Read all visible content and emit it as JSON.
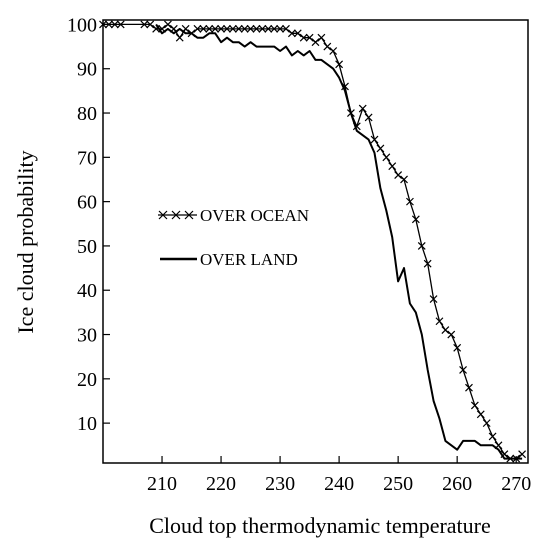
{
  "chart_data": {
    "type": "line",
    "xlabel": "Cloud top thermodynamic temperature",
    "ylabel": "Ice cloud probability",
    "xlim": [
      200,
      272
    ],
    "ylim": [
      1,
      101
    ],
    "xticks": [
      210,
      220,
      230,
      240,
      250,
      260,
      270
    ],
    "yticks": [
      10,
      20,
      30,
      40,
      50,
      60,
      70,
      80,
      90,
      100
    ],
    "grid": false,
    "legend_position": "center-left",
    "series": [
      {
        "name": "OVER OCEAN",
        "marker": "x",
        "line_style": "solid",
        "color": "#000000",
        "x": [
          200,
          201,
          202,
          203,
          207,
          208,
          209,
          210,
          211,
          212,
          213,
          214,
          215,
          216,
          217,
          218,
          219,
          220,
          221,
          222,
          223,
          224,
          225,
          226,
          227,
          228,
          229,
          230,
          231,
          232,
          233,
          234,
          235,
          236,
          237,
          238,
          239,
          240,
          241,
          242,
          243,
          244,
          245,
          246,
          247,
          248,
          249,
          250,
          251,
          252,
          253,
          254,
          255,
          256,
          257,
          258,
          259,
          260,
          261,
          262,
          263,
          264,
          265,
          266,
          267,
          268,
          269,
          270,
          271
        ],
        "values": [
          100,
          100,
          100,
          100,
          100,
          100,
          99,
          99,
          100,
          99,
          97,
          99,
          98,
          99,
          99,
          99,
          99,
          99,
          99,
          99,
          99,
          99,
          99,
          99,
          99,
          99,
          99,
          99,
          99,
          98,
          98,
          97,
          97,
          96,
          97,
          95,
          94,
          91,
          86,
          80,
          77,
          81,
          79,
          74,
          72,
          70,
          68,
          66,
          65,
          60,
          56,
          50,
          46,
          38,
          33,
          31,
          30,
          27,
          22,
          18,
          14,
          12,
          10,
          7,
          5,
          3,
          2,
          2,
          3
        ]
      },
      {
        "name": "OVER LAND",
        "marker": "none",
        "line_style": "solid",
        "color": "#000000",
        "x": [
          209,
          210,
          211,
          212,
          213,
          214,
          215,
          216,
          217,
          218,
          219,
          220,
          221,
          222,
          223,
          224,
          225,
          226,
          227,
          228,
          229,
          230,
          231,
          232,
          233,
          234,
          235,
          236,
          237,
          238,
          239,
          240,
          241,
          242,
          243,
          244,
          245,
          246,
          247,
          248,
          249,
          250,
          251,
          252,
          253,
          254,
          255,
          256,
          257,
          258,
          259,
          260,
          261,
          262,
          263,
          264,
          265,
          266,
          267,
          268,
          269,
          270,
          271
        ],
        "values": [
          100,
          98,
          99,
          98,
          99,
          98,
          98,
          97,
          97,
          98,
          98,
          96,
          97,
          96,
          96,
          95,
          96,
          95,
          95,
          95,
          95,
          94,
          95,
          93,
          94,
          93,
          94,
          92,
          92,
          91,
          90,
          88,
          85,
          80,
          76,
          75,
          74,
          71,
          63,
          58,
          52,
          42,
          45,
          37,
          35,
          30,
          22,
          15,
          11,
          6,
          5,
          4,
          6,
          6,
          6,
          5,
          5,
          5,
          4,
          2,
          2,
          2,
          2
        ]
      }
    ]
  }
}
